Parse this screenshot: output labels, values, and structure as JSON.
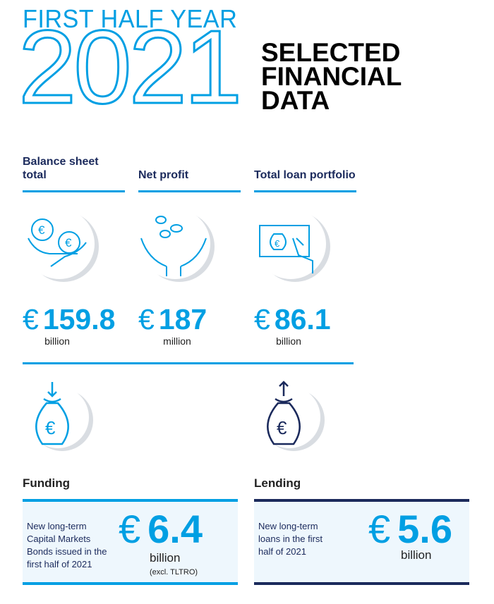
{
  "header": {
    "supertitle": "FIRST HALF YEAR",
    "year": "2021",
    "title_lines": [
      "SELECTED",
      "FINANCIAL",
      "DATA"
    ]
  },
  "colors": {
    "blue": "#009fe3",
    "navy": "#1b2a5c",
    "box_bg": "#eef7fd"
  },
  "metrics": [
    {
      "label": "Balance sheet total",
      "icon": "euro-coins-hands-icon",
      "currency": "€",
      "value": "159.8",
      "unit": "billion"
    },
    {
      "label": "Net profit",
      "icon": "coins-falling-hands-icon",
      "currency": "€",
      "value": "187",
      "unit": "million"
    },
    {
      "label": "Total loan portfolio",
      "icon": "screen-tap-money-bag-icon",
      "currency": "€",
      "value": "86.1",
      "unit": "billion"
    }
  ],
  "funding": {
    "title": "Funding",
    "icon": "money-bag-arrow-down-icon",
    "description": "New long-term Capital Markets Bonds issued in the first half of 2021",
    "currency": "€",
    "value": "6.4",
    "unit": "billion",
    "note": "(excl. TLTRO)"
  },
  "lending": {
    "title": "Lending",
    "icon": "money-bag-arrow-up-icon",
    "description": "New long-term loans in the first half of 2021",
    "currency": "€",
    "value": "5.6",
    "unit": "billion"
  }
}
